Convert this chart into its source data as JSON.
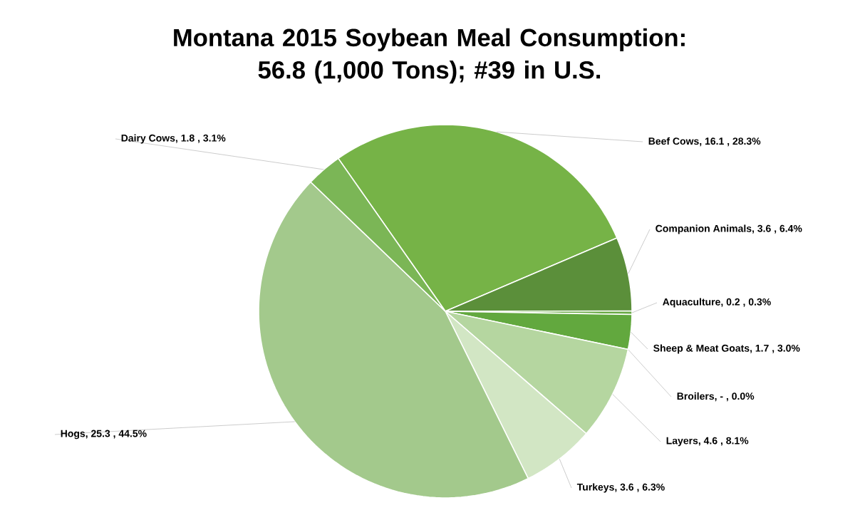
{
  "chart_data": {
    "type": "pie",
    "title": "Montana 2015 Soybean Meal Consumption: 56.8 (1,000 Tons); #39 in U.S.",
    "categories": [
      "Beef Cows",
      "Companion Animals",
      "Aquaculture",
      "Sheep & Meat Goats",
      "Broilers",
      "Layers",
      "Turkeys",
      "Hogs",
      "Dairy Cows"
    ],
    "values": [
      28.3,
      6.4,
      0.3,
      3.0,
      0.0,
      8.1,
      6.3,
      44.5,
      3.1
    ],
    "value_labels": [
      ", 16.1 , 28.3%",
      ", 3.6 , 6.4%",
      ", 0.2 , 0.3%",
      ", 1.7 , 3.0%",
      ", - , 0.0%",
      ", 4.6 , 8.1%",
      ", 3.6 , 6.3%",
      ", 25.3 , 44.5%",
      ", 1.8 , 3.1%"
    ],
    "colors": [
      "#76b347",
      "#5b8f3a",
      "#6aaa46",
      "#62a83e",
      "#6aaa46",
      "#b5d6a0",
      "#d2e6c4",
      "#a3c98c",
      "#7bb656"
    ]
  }
}
